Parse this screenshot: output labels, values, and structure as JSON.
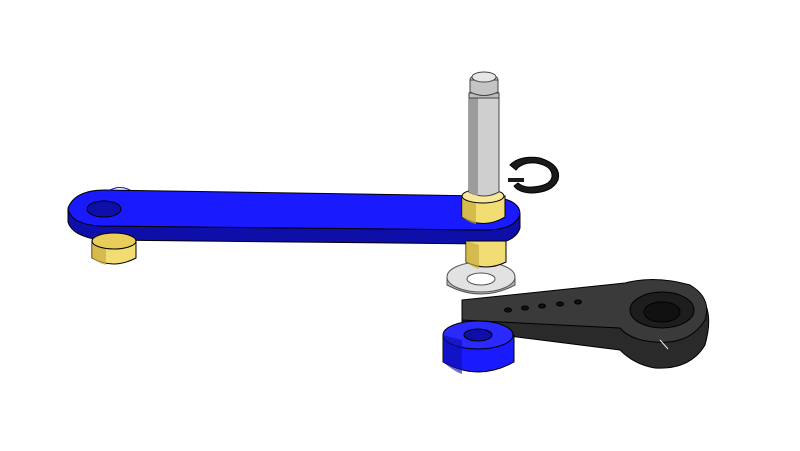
{
  "scene": {
    "background": "#ffffff",
    "parts": [
      {
        "name": "blue-link-arm",
        "color": "#1a1aff",
        "dark": "#0e0ea8"
      },
      {
        "name": "brass-bushing",
        "color": "#f2dc74",
        "dark": "#b89a2e"
      },
      {
        "name": "steel-pin",
        "color": "#c8c8c8",
        "dark": "#8c8c8c"
      },
      {
        "name": "e-clip",
        "color": "#1a1a1a"
      },
      {
        "name": "steel-washer",
        "color": "#d9d9d9",
        "dark": "#9a9a9a"
      },
      {
        "name": "black-servo-horn",
        "color": "#2a2a2a",
        "dark": "#111111"
      },
      {
        "name": "blue-spacer",
        "color": "#1a1aff",
        "dark": "#0e0ea8"
      }
    ]
  }
}
